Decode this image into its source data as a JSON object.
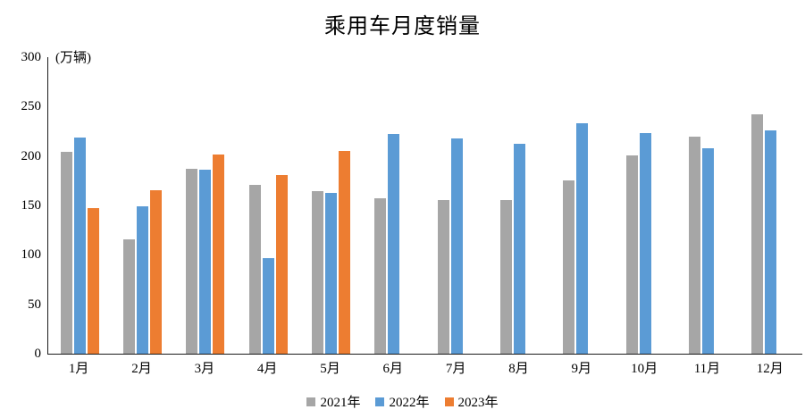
{
  "title": "乘用车月度销量",
  "chart_data": {
    "type": "bar",
    "title": "乘用车月度销量",
    "xlabel": "",
    "ylabel": "(万辆)",
    "ylim": [
      0,
      300
    ],
    "yticks": [
      0,
      50,
      100,
      150,
      200,
      250,
      300
    ],
    "grid": false,
    "legend_position": "bottom",
    "categories": [
      "1月",
      "2月",
      "3月",
      "4月",
      "5月",
      "6月",
      "7月",
      "8月",
      "9月",
      "10月",
      "11月",
      "12月"
    ],
    "series": [
      {
        "name": "2021年",
        "color": "#A6A6A6",
        "values": [
          204.5,
          115.6,
          187.4,
          170.4,
          164.6,
          156.9,
          155.1,
          155.2,
          175.1,
          200.7,
          219.2,
          242.2
        ]
      },
      {
        "name": "2022年",
        "color": "#5B9BD5",
        "values": [
          218.6,
          148.7,
          186.4,
          96.5,
          162.3,
          222.2,
          217.4,
          212.5,
          233.2,
          223.1,
          207.9,
          226.3
        ]
      },
      {
        "name": "2023年",
        "color": "#ED7D31",
        "values": [
          146.9,
          165.3,
          201.7,
          181.1,
          205.1,
          null,
          null,
          null,
          null,
          null,
          null,
          null
        ]
      }
    ]
  }
}
